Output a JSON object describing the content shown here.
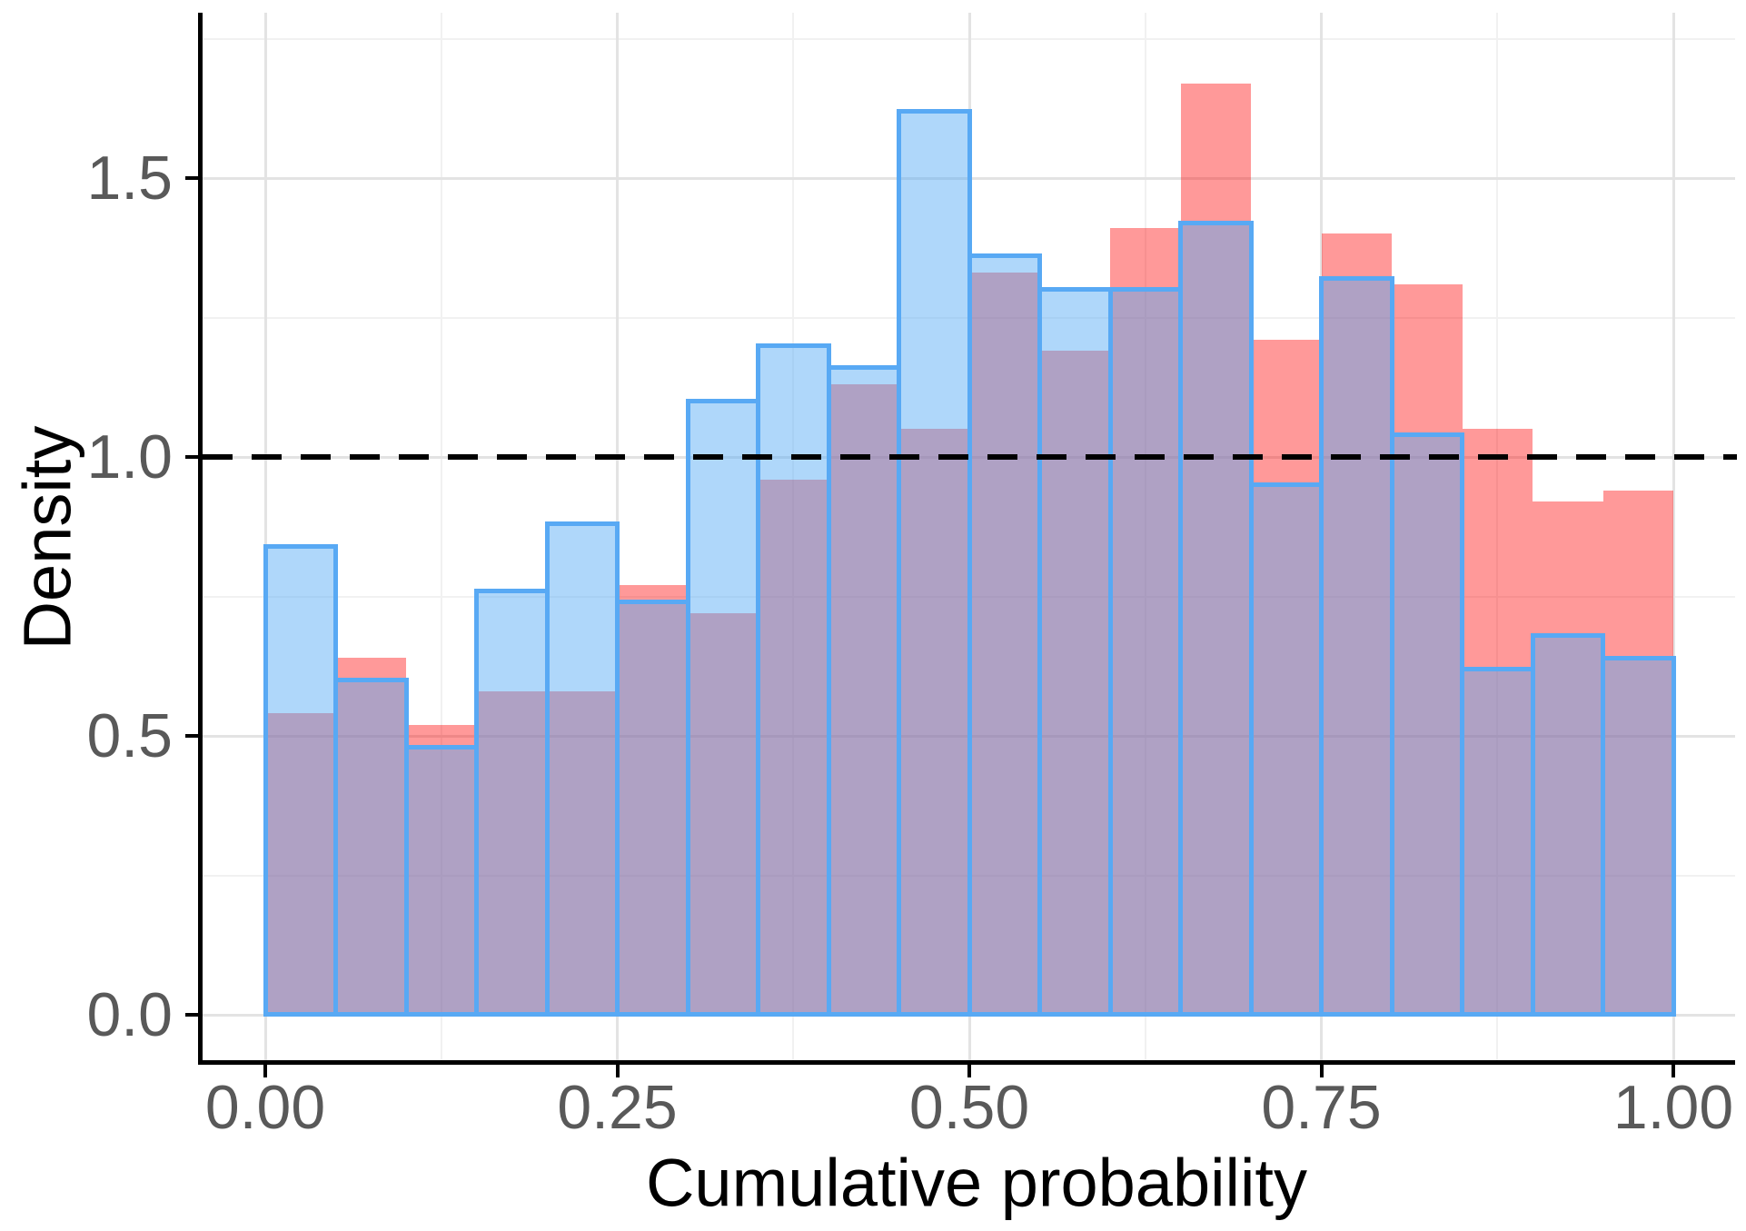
{
  "figure": {
    "background": "#FFFFFF",
    "x_axis": {
      "title": "Cumulative probability",
      "tick_labels": [
        "0.00",
        "0.25",
        "0.50",
        "0.75",
        "1.00"
      ],
      "tick_values": [
        0,
        0.25,
        0.5,
        0.75,
        1.0
      ]
    },
    "y_axis": {
      "title": "Density",
      "tick_labels": [
        "0.0",
        "0.5",
        "1.0",
        "1.5"
      ],
      "tick_values": [
        0,
        0.5,
        1.0,
        1.5
      ]
    }
  },
  "colors": {
    "red_fill": "rgba(255,0,0,0.40)",
    "blue_fill": "rgba(86,170,245,0.47)",
    "blue_border": "#58A9F4",
    "tick_label": "#595959",
    "axis_title": "#000000",
    "grid_major": "#E3E3E3",
    "grid_minor": "#F1F1F1",
    "axis_line": "#000000",
    "dashed_line": "#000000"
  },
  "chart_data": {
    "type": "bar",
    "subtype": "overlaid-histogram",
    "title": "",
    "xlabel": "Cumulative probability",
    "ylabel": "Density",
    "xlim": [
      0,
      1
    ],
    "ylim": [
      0,
      1.79
    ],
    "grid": "on",
    "legend": "none",
    "bin_width": 0.05,
    "n_bins": 20,
    "bin_edges": [
      0.0,
      0.05,
      0.1,
      0.15,
      0.2,
      0.25,
      0.3,
      0.35,
      0.4,
      0.45,
      0.5,
      0.55,
      0.6,
      0.65,
      0.7,
      0.75,
      0.8,
      0.85,
      0.9,
      0.95,
      1.0
    ],
    "series": [
      {
        "name": "red-histogram",
        "draw_order": 1,
        "values": [
          0.54,
          0.64,
          0.52,
          0.58,
          0.58,
          0.77,
          0.72,
          0.96,
          1.13,
          1.05,
          1.33,
          1.19,
          1.41,
          1.67,
          1.21,
          1.4,
          1.31,
          1.05,
          0.92,
          0.94
        ]
      },
      {
        "name": "blue-histogram",
        "draw_order": 2,
        "values": [
          0.84,
          0.6,
          0.48,
          0.76,
          0.88,
          0.74,
          1.1,
          1.2,
          1.16,
          1.62,
          1.36,
          1.3,
          1.3,
          1.42,
          0.95,
          1.32,
          1.04,
          0.62,
          0.68,
          0.64
        ]
      }
    ],
    "reference_line": {
      "y": 1.0,
      "style": "dashed",
      "color": "#000000"
    },
    "grid_major_y": [
      0,
      0.5,
      1.0,
      1.5
    ],
    "grid_minor_y": [
      0.25,
      0.75,
      1.25,
      1.75
    ],
    "grid_major_x": [
      0,
      0.25,
      0.5,
      0.75,
      1.0
    ],
    "grid_minor_x": [
      0.125,
      0.375,
      0.625,
      0.875
    ]
  }
}
